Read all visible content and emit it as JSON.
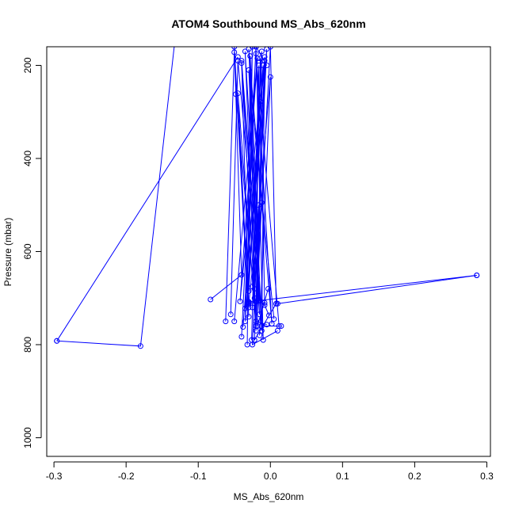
{
  "chart_data": {
    "type": "line",
    "title": "ATOM4 Southbound MS_Abs_620nm",
    "xlabel": "MS_Abs_620nm",
    "ylabel": "Pressure (mbar)",
    "xlim": [
      -0.31,
      0.305
    ],
    "ylim": [
      1040,
      160
    ],
    "y_reversed": true,
    "x_ticks": [
      -0.3,
      -0.2,
      -0.1,
      0.0,
      0.1,
      0.2,
      0.3
    ],
    "x_tick_labels": [
      "-0.3",
      "-0.2",
      "-0.1",
      "0.0",
      "0.1",
      "0.2",
      "0.3"
    ],
    "y_ticks": [
      200,
      400,
      600,
      800,
      1000
    ],
    "y_tick_labels": [
      "200",
      "400",
      "600",
      "800",
      "1000"
    ],
    "grid": false,
    "legend": "none",
    "color": "#0000ff",
    "series": [
      {
        "x": [
          -0.296,
          -0.18,
          -0.133
        ],
        "y": [
          792,
          803,
          155
        ]
      },
      {
        "x": [
          -0.296,
          -0.045
        ],
        "y": [
          792,
          182
        ]
      },
      {
        "x": [
          -0.083,
          -0.04,
          -0.05,
          -0.03,
          -0.04,
          -0.01,
          -0.02,
          -0.005
        ],
        "y": [
          703,
          650,
          160,
          720,
          190,
          790,
          160,
          200
        ]
      },
      {
        "x": [
          -0.062,
          -0.05,
          -0.03,
          -0.045,
          -0.02,
          -0.035,
          -0.012,
          -0.028
        ],
        "y": [
          750,
          172,
          740,
          260,
          760,
          170,
          770,
          180
        ]
      },
      {
        "x": [
          -0.055,
          -0.045,
          -0.015,
          -0.03,
          0.002,
          -0.02,
          0.012
        ],
        "y": [
          735,
          190,
          705,
          165,
          755,
          175,
          760
        ]
      },
      {
        "x": [
          -0.05,
          -0.018,
          -0.042,
          -0.01,
          -0.025,
          0.0,
          -0.015
        ],
        "y": [
          750,
          185,
          707,
          200,
          675,
          225,
          780
        ]
      },
      {
        "x": [
          -0.04,
          -0.02,
          -0.035,
          -0.005,
          -0.025,
          0.01
        ],
        "y": [
          783,
          160,
          750,
          165,
          800,
          770
        ]
      },
      {
        "x": [
          -0.038,
          -0.014,
          -0.032,
          -0.008,
          -0.022,
          0.008
        ],
        "y": [
          762,
          278,
          710,
          182,
          790,
          712
        ]
      },
      {
        "x": [
          -0.03,
          -0.016,
          -0.025,
          -0.012,
          -0.02,
          -0.005
        ],
        "y": [
          712,
          500,
          720,
          495,
          750,
          757
        ]
      },
      {
        "x": [
          -0.035,
          -0.025,
          -0.03,
          -0.012,
          -0.018,
          -0.003
        ],
        "y": [
          722,
          160,
          685,
          170,
          760,
          680
        ]
      },
      {
        "x": [
          -0.032,
          -0.028,
          -0.022,
          -0.014,
          -0.008,
          -0.002
        ],
        "y": [
          800,
          180,
          680,
          185,
          715,
          737
        ]
      },
      {
        "x": [
          -0.048,
          -0.022,
          -0.04,
          -0.015,
          -0.03,
          0.005
        ],
        "y": [
          262,
          700,
          195,
          735,
          210,
          745
        ]
      },
      {
        "x": [
          -0.026,
          -0.016,
          -0.02,
          -0.008,
          -0.012,
          0.015
        ],
        "y": [
          790,
          200,
          770,
          190,
          760,
          760
        ]
      },
      {
        "x": [
          -0.03,
          0.286
        ],
        "y": [
          708,
          651
        ]
      },
      {
        "x": [
          0.01,
          0.286
        ],
        "y": [
          712,
          651
        ]
      },
      {
        "x": [
          0.008,
          0.0,
          -0.02
        ],
        "y": [
          712,
          160,
          708
        ]
      },
      {
        "x": [
          -0.03,
          -0.008
        ],
        "y": [
          710,
          710
        ]
      }
    ]
  }
}
